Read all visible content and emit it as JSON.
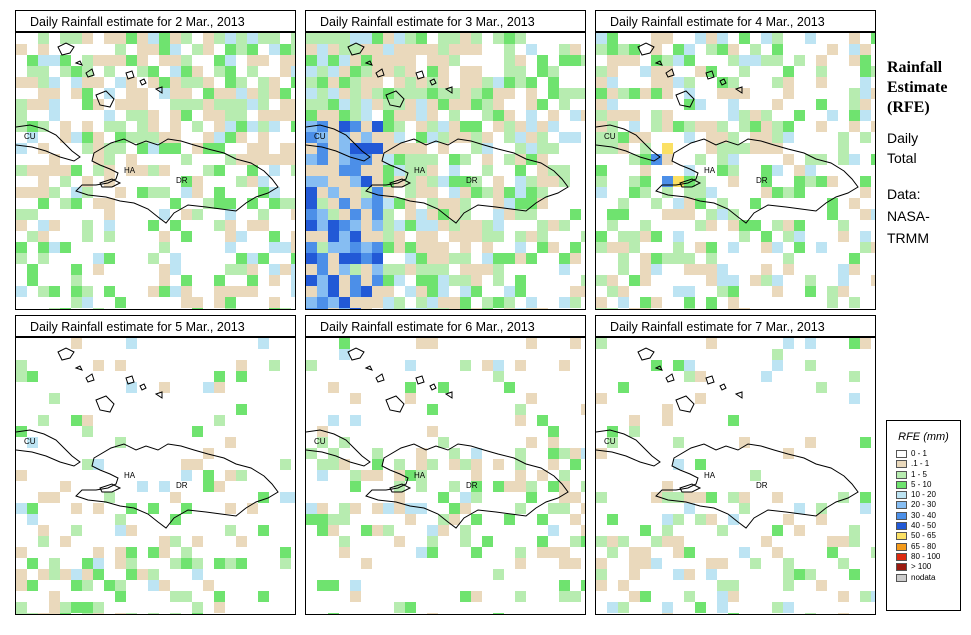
{
  "panels": [
    {
      "title": "Daily Rainfall estimate for  2 Mar., 2013",
      "wet": 0.55,
      "bias": "n"
    },
    {
      "title": "Daily Rainfall estimate for  3 Mar., 2013",
      "wet": 0.85,
      "bias": "w"
    },
    {
      "title": "Daily Rainfall estimate for  4 Mar., 2013",
      "wet": 0.6,
      "bias": "nw"
    },
    {
      "title": "Daily Rainfall estimate for  5 Mar., 2013",
      "wet": 0.3,
      "bias": "sw"
    },
    {
      "title": "Daily Rainfall estimate for  6 Mar., 2013",
      "wet": 0.3,
      "bias": "mid"
    },
    {
      "title": "Daily Rainfall estimate for  7 Mar., 2013",
      "wet": 0.25,
      "bias": "sw"
    }
  ],
  "map_labels": {
    "cu": "CU",
    "ha": "HA",
    "dr": "DR"
  },
  "side": {
    "line1": "Rainfall",
    "line2": "Estimate",
    "line3": "(RFE)",
    "line4": "Daily",
    "line5": "Total",
    "line6": "Data:",
    "line7": "NASA-",
    "line8": "TRMM"
  },
  "legend": {
    "title": "RFE (mm)",
    "items": [
      {
        "label": "0 - 1",
        "color": "#ffffff"
      },
      {
        "label": ".1 - 1",
        "color": "#ead9bc"
      },
      {
        "label": "1 - 5",
        "color": "#b7ecb0"
      },
      {
        "label": "5 - 10",
        "color": "#6fe36f"
      },
      {
        "label": "10 - 20",
        "color": "#bde4f3"
      },
      {
        "label": "20 - 30",
        "color": "#86bdf2"
      },
      {
        "label": "30 - 40",
        "color": "#4c8fe8"
      },
      {
        "label": "40 - 50",
        "color": "#2259d6"
      },
      {
        "label": "50 - 65",
        "color": "#fbe064"
      },
      {
        "label": "65 - 80",
        "color": "#f59a1a"
      },
      {
        "label": "80 - 100",
        "color": "#dd2a0f"
      },
      {
        "label": "> 100",
        "color": "#9b1a10"
      },
      {
        "label": "nodata",
        "color": "#cccccc"
      }
    ]
  }
}
